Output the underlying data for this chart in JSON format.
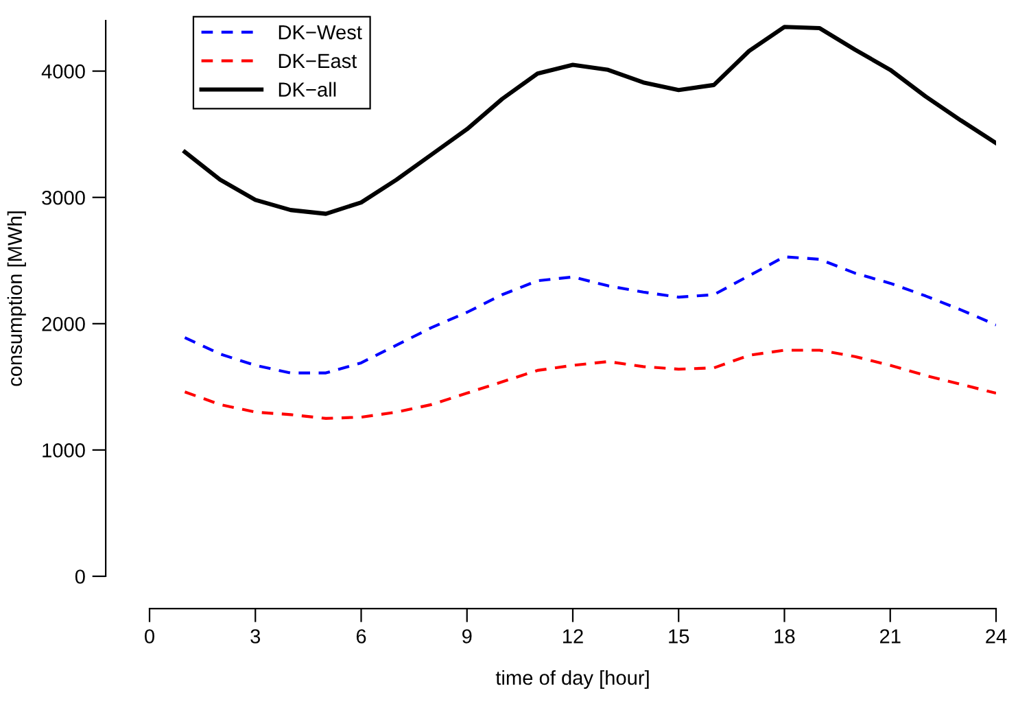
{
  "chart_data": {
    "type": "line",
    "xlabel": "time of day [hour]",
    "ylabel": "consumption [MWh]",
    "x": [
      1,
      2,
      3,
      4,
      5,
      6,
      7,
      8,
      9,
      10,
      11,
      12,
      13,
      14,
      15,
      16,
      17,
      18,
      19,
      20,
      21,
      22,
      23,
      24
    ],
    "series": [
      {
        "name": "DK−West",
        "color": "#0000ff",
        "line_style": "dashed",
        "values": [
          1890,
          1760,
          1670,
          1610,
          1610,
          1690,
          1830,
          1970,
          2090,
          2230,
          2340,
          2370,
          2300,
          2250,
          2210,
          2230,
          2380,
          2530,
          2510,
          2400,
          2320,
          2220,
          2110,
          1990
        ]
      },
      {
        "name": "DK−East",
        "color": "#ff0000",
        "line_style": "dashed",
        "values": [
          1460,
          1360,
          1300,
          1280,
          1250,
          1260,
          1300,
          1360,
          1450,
          1540,
          1630,
          1670,
          1700,
          1660,
          1640,
          1650,
          1750,
          1790,
          1790,
          1740,
          1670,
          1590,
          1520,
          1450
        ]
      },
      {
        "name": "DK−all",
        "color": "#000000",
        "line_style": "solid",
        "values": [
          3360,
          3140,
          2980,
          2900,
          2870,
          2960,
          3140,
          3340,
          3540,
          3780,
          3980,
          4050,
          4010,
          3910,
          3850,
          3890,
          4160,
          4350,
          4340,
          4170,
          4010,
          3800,
          3610,
          3430
        ]
      }
    ],
    "xlim": [
      0,
      24
    ],
    "ylim": [
      0,
      4400
    ],
    "xticks": [
      0,
      3,
      6,
      9,
      12,
      15,
      18,
      21,
      24
    ],
    "yticks": [
      0,
      1000,
      2000,
      3000,
      4000
    ],
    "grid": false,
    "legend": "top left",
    "marker": "none"
  }
}
